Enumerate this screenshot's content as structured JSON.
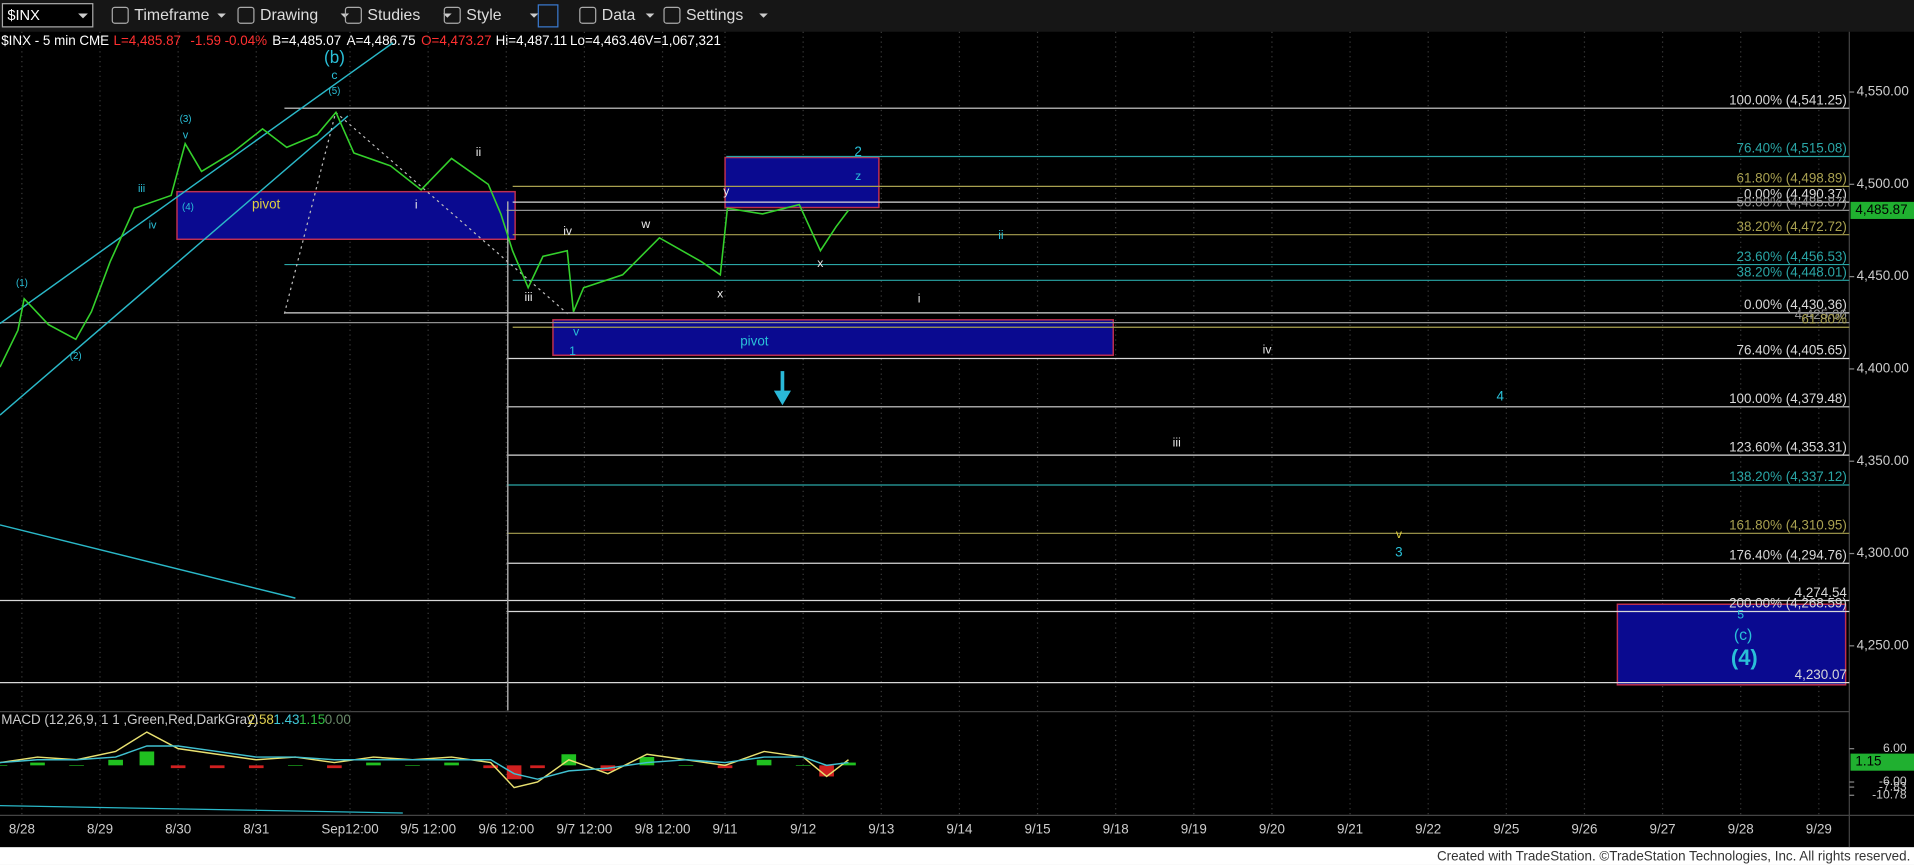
{
  "toolbar": {
    "symbol": "$INX",
    "menus": [
      "Timeframe",
      "Drawing",
      "Studies",
      "Style",
      "Data",
      "Settings"
    ]
  },
  "info_bar": {
    "symbol": "$INX - 5 min",
    "exchange": "CME",
    "last": "L=4,485.87",
    "change": "-1.59",
    "pct": "-0.04%",
    "bid": "B=4,485.07",
    "ask": "A=4,486.75",
    "open": "O=4,473.27",
    "high": "Hi=4,487.11",
    "low": "Lo=4,463.46",
    "volume": "V=1,067,321"
  },
  "chart_data": [
    {
      "type": "line",
      "color": "#34d02c",
      "x": [
        -0.28,
        -0.05,
        0.03,
        0.34,
        0.69,
        0.89,
        1.13,
        1.44,
        1.91,
        2.09,
        2.3,
        2.69,
        3.08,
        3.39,
        3.78,
        4.02,
        4.25,
        4.72,
        5.11,
        5.5,
        5.97,
        6.13,
        6.28,
        6.48,
        6.67,
        6.98,
        7.06,
        7.19,
        7.69,
        8.16,
        8.7,
        8.94,
        9.03,
        9.48,
        9.95,
        10.22,
        10.42,
        10.58
      ],
      "values": [
        4401,
        4421,
        4438,
        4424,
        4416,
        4431,
        4458,
        4487,
        4494,
        4522,
        4507,
        4517,
        4530,
        4520,
        4527,
        4539,
        4517,
        4510,
        4497,
        4514,
        4500,
        4484,
        4464,
        4444,
        4461,
        4464,
        4431,
        4444,
        4451,
        4471,
        4458,
        4451,
        4487,
        4484,
        4489,
        4464,
        4477,
        4486
      ],
      "xlim": [
        -0.28,
        23.39
      ],
      "xticks": [
        {
          "value": 0,
          "label": "8/28"
        },
        {
          "value": 1,
          "label": "8/29"
        },
        {
          "value": 2,
          "label": "8/30"
        },
        {
          "value": 3,
          "label": "8/31"
        },
        {
          "value": 4.2,
          "label": "Sep12:00"
        },
        {
          "value": 5.2,
          "label": "9/5 12:00"
        },
        {
          "value": 6.2,
          "label": "9/6 12:00"
        },
        {
          "value": 7.2,
          "label": "9/7 12:00"
        },
        {
          "value": 8.2,
          "label": "9/8 12:00"
        },
        {
          "value": 9,
          "label": "9/11"
        },
        {
          "value": 10,
          "label": "9/12"
        },
        {
          "value": 11,
          "label": "9/13"
        },
        {
          "value": 12,
          "label": "9/14"
        },
        {
          "value": 13,
          "label": "9/15"
        },
        {
          "value": 14,
          "label": "9/18"
        },
        {
          "value": 15,
          "label": "9/19"
        },
        {
          "value": 16,
          "label": "9/20"
        },
        {
          "value": 17,
          "label": "9/21"
        },
        {
          "value": 18,
          "label": "9/22"
        },
        {
          "value": 19,
          "label": "9/25"
        },
        {
          "value": 20,
          "label": "9/26"
        },
        {
          "value": 21,
          "label": "9/27"
        },
        {
          "value": 22,
          "label": "9/28"
        },
        {
          "value": 23,
          "label": "9/29"
        }
      ],
      "ylim": [
        4215,
        4580
      ],
      "yticks": [
        {
          "value": 4550,
          "label": "4,550.00"
        },
        {
          "value": 4500,
          "label": "4,500.00"
        },
        {
          "value": 4450,
          "label": "4,450.00"
        },
        {
          "value": 4400,
          "label": "4,400.00"
        },
        {
          "value": 4350,
          "label": "4,350.00"
        },
        {
          "value": 4300,
          "label": "4,300.00"
        },
        {
          "value": 4250,
          "label": "4,250.00"
        }
      ],
      "price_marker": {
        "value": 4485.87,
        "label": "4,485.87"
      },
      "levels": [
        {
          "value": 4541.25,
          "label": "100.00% (4,541.25)",
          "color": "#d8d8d8"
        },
        {
          "value": 4515.08,
          "label": "76.40% (4,515.08)",
          "color": "#2aa6a6"
        },
        {
          "value": 4498.89,
          "label": "61.80% (4,498.89)",
          "color": "#a8a050"
        },
        {
          "value": 4490.37,
          "label": "0.00% (4,490.37)",
          "color": "#d8d8d8"
        },
        {
          "value": 4485.87,
          "label": "50.00% (4,485.87)",
          "color": "#909090"
        },
        {
          "value": 4472.72,
          "label": "38.20% (4,472.72)",
          "color": "#a8a050"
        },
        {
          "value": 4456.53,
          "label": "23.60% (4,456.53)",
          "color": "#2aa6a6"
        },
        {
          "value": 4448.01,
          "label": "38.20% (4,448.01)",
          "color": "#2aa6a6"
        },
        {
          "value": 4430.36,
          "label": "0.00% (4,430.36)",
          "color": "#d8d8d8"
        },
        {
          "value": 4425.06,
          "label": "4,425.06",
          "color": "#909090"
        },
        {
          "value": 4422.6,
          "label": "61.80%",
          "color": "#a8a050"
        },
        {
          "value": 4405.65,
          "label": "76.40% (4,405.65)",
          "color": "#d8d8d8"
        },
        {
          "value": 4379.48,
          "label": "100.00% (4,379.48)",
          "color": "#d8d8d8"
        },
        {
          "value": 4353.31,
          "label": "123.60% (4,353.31)",
          "color": "#d8d8d8"
        },
        {
          "value": 4337.12,
          "label": "138.20% (4,337.12)",
          "color": "#2aa6a6"
        },
        {
          "value": 4310.95,
          "label": "161.80% (4,310.95)",
          "color": "#a8a050"
        },
        {
          "value": 4294.76,
          "label": "176.40% (4,294.76)",
          "color": "#d8d8d8"
        },
        {
          "value": 4274.54,
          "label": "4,274.54",
          "color": "#d8d8d8"
        },
        {
          "value": 4268.59,
          "label": "200.00% (4,268.59)",
          "color": "#d8d8d8"
        },
        {
          "value": 4230.07,
          "label": "4,230.07",
          "color": "#d8d8d8"
        }
      ],
      "annotations": [
        "(b)",
        "c",
        "(5)",
        "(3)",
        "v",
        "iii",
        "iv",
        "(4)",
        "(1)",
        "(2)",
        "pivot",
        "i",
        "ii",
        "iii",
        "iv",
        "v",
        "1",
        "w",
        "x",
        "y",
        "x",
        "z",
        "2",
        "pivot",
        "ii",
        "i",
        "iv",
        "4",
        "iii",
        "v",
        "3",
        "5",
        "(c)",
        "(4)"
      ]
    },
    {
      "type": "line",
      "title": "MACD (12,26,9, 1   1 ,Green,Red,DarkGray)",
      "readouts": [
        {
          "label": "2.58",
          "color": "#e0d050"
        },
        {
          "label": "1.43",
          "color": "#40c8d8"
        },
        {
          "label": "1.15",
          "color": "#30c040"
        },
        {
          "label": "0.00",
          "color": "#6a8a6a"
        }
      ],
      "x": [
        -0.28,
        0.2,
        0.7,
        1.2,
        1.6,
        2.0,
        2.5,
        3.0,
        3.5,
        4.0,
        4.5,
        5.0,
        5.5,
        6.0,
        6.3,
        6.6,
        7.0,
        7.5,
        8.0,
        8.5,
        9.0,
        9.5,
        10.0,
        10.3,
        10.58
      ],
      "series": [
        {
          "color": "#e8e070",
          "values": [
            1,
            3,
            2,
            5,
            12,
            6,
            4,
            2,
            3,
            1,
            3,
            2,
            3,
            1,
            -8,
            -6,
            2,
            -3,
            4,
            2,
            0,
            5,
            3,
            -4,
            2
          ]
        },
        {
          "color": "#40c0d0",
          "values": [
            1,
            2,
            2,
            3,
            7,
            7,
            5,
            3,
            3,
            2,
            2,
            2,
            2,
            2,
            -3,
            -5,
            -2,
            -1,
            1,
            2,
            1,
            3,
            3,
            0,
            1
          ]
        }
      ],
      "histogram": [
        0,
        1,
        0,
        2,
        5,
        -1,
        -1,
        -1,
        0,
        -1,
        1,
        0,
        1,
        -1,
        -5,
        -1,
        4,
        -2,
        3,
        0,
        -1,
        2,
        0,
        -4,
        1
      ],
      "ylim": [
        -17.6,
        18.9
      ],
      "yticks": [
        {
          "value": 6,
          "label": "6.00"
        },
        {
          "value": -6,
          "label": "-6.00"
        },
        {
          "value": -7.83,
          "label": "-7.83"
        },
        {
          "value": -10.78,
          "label": "-10.78"
        }
      ],
      "marker": {
        "value": 1.15,
        "label": "1.15"
      }
    }
  ],
  "footer": "Created with TradeStation. ©TradeStation Technologies, Inc. All rights reserved."
}
